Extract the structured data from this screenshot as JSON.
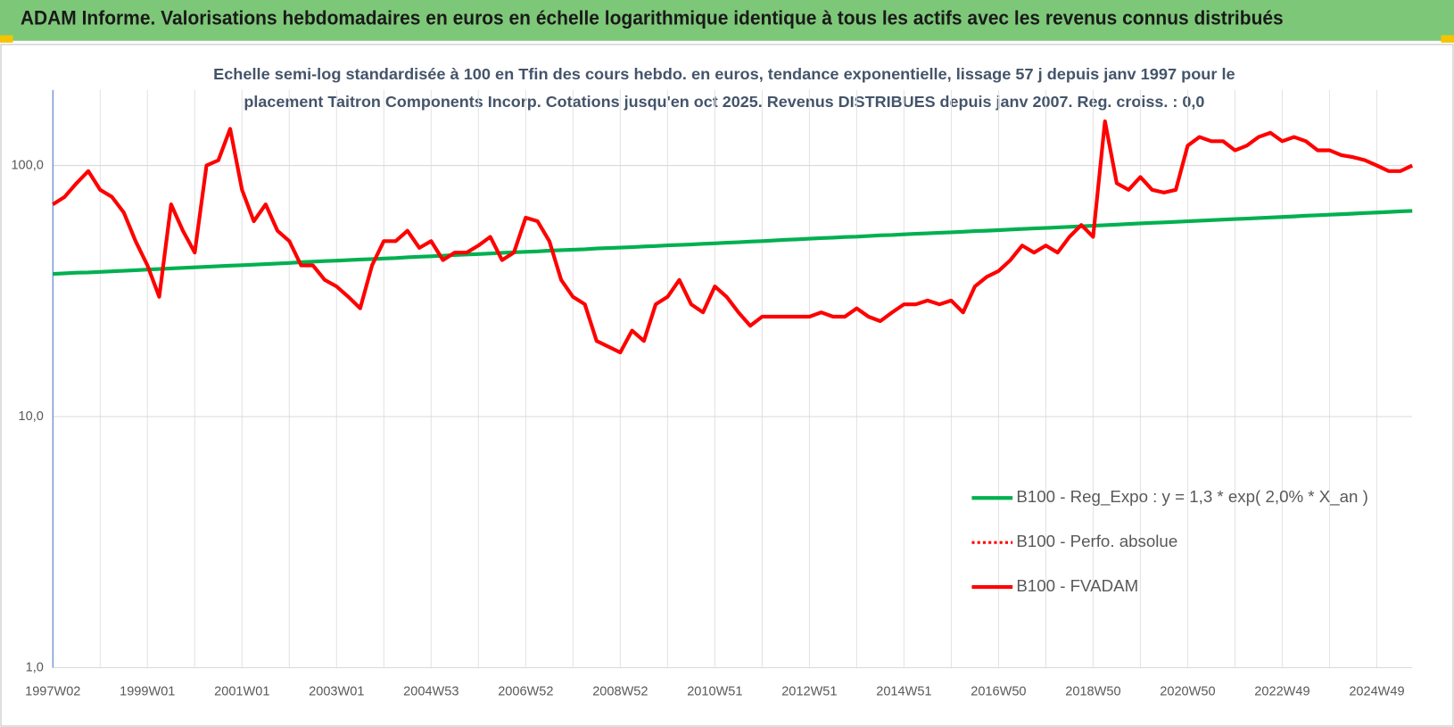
{
  "chart_data": {
    "type": "line",
    "title": "ADAM Informe. Valorisations hebdomadaires en euros en échelle logarithmique identique à tous les actifs avec les revenus connus distribués",
    "subtitle": [
      "Echelle semi-log standardisée à 100 en Tfin des cours hebdo. en euros, tendance exponentielle, lissage 57 j depuis janv 1997 pour le",
      "placement Taitron Components Incorp. Cotations jusqu'en oct 2025. Revenus DISTRIBUES depuis janv 2007. Reg. croiss. : 0,0"
    ],
    "log_scale": true,
    "ylim": [
      1,
      200
    ],
    "yticks": [
      {
        "value": 1,
        "label": "1,0"
      },
      {
        "value": 10,
        "label": "10,0"
      },
      {
        "value": 100,
        "label": "100,0"
      }
    ],
    "grid": true,
    "legend": "lower right",
    "categories": [
      "1997W02",
      null,
      null,
      null,
      null,
      null,
      null,
      null,
      "1999W01",
      null,
      null,
      null,
      null,
      null,
      null,
      null,
      "2001W01",
      null,
      null,
      null,
      null,
      null,
      null,
      null,
      "2003W01",
      null,
      null,
      null,
      null,
      null,
      null,
      null,
      "2004W53",
      null,
      null,
      null,
      null,
      null,
      null,
      null,
      "2006W52",
      null,
      null,
      null,
      null,
      null,
      null,
      null,
      "2008W52",
      null,
      null,
      null,
      null,
      null,
      null,
      null,
      "2010W51",
      null,
      null,
      null,
      null,
      null,
      null,
      null,
      "2012W51",
      null,
      null,
      null,
      null,
      null,
      null,
      null,
      "2014W51",
      null,
      null,
      null,
      null,
      null,
      null,
      null,
      "2016W50",
      null,
      null,
      null,
      null,
      null,
      null,
      null,
      "2018W50",
      null,
      null,
      null,
      null,
      null,
      null,
      null,
      "2020W50",
      null,
      null,
      null,
      null,
      null,
      null,
      null,
      "2022W49",
      null,
      null,
      null,
      null,
      null,
      null,
      null,
      "2024W49",
      null,
      null,
      null
    ],
    "series": [
      {
        "name": "B100 - Reg_Expo : y = 1,3 * exp( 2,0% *  X_an )",
        "color": "#00b050",
        "style": "solid",
        "values": [
          37.0,
          37.2,
          37.4,
          37.5,
          37.7,
          37.9,
          38.1,
          38.3,
          38.5,
          38.7,
          38.9,
          39.1,
          39.3,
          39.5,
          39.7,
          39.9,
          40.1,
          40.3,
          40.5,
          40.7,
          40.9,
          41.2,
          41.4,
          41.6,
          41.8,
          42.0,
          42.2,
          42.4,
          42.6,
          42.8,
          43.1,
          43.3,
          43.5,
          43.7,
          44.0,
          44.2,
          44.4,
          44.6,
          44.9,
          45.1,
          45.3,
          45.5,
          45.8,
          46.0,
          46.2,
          46.4,
          46.7,
          46.9,
          47.1,
          47.3,
          47.6,
          47.8,
          48.1,
          48.3,
          48.5,
          48.8,
          49.0,
          49.3,
          49.5,
          49.8,
          50.0,
          50.3,
          50.6,
          50.8,
          51.1,
          51.4,
          51.6,
          51.9,
          52.1,
          52.4,
          52.7,
          52.9,
          53.2,
          53.5,
          53.7,
          54.0,
          54.2,
          54.5,
          54.8,
          55.0,
          55.3,
          55.6,
          55.9,
          56.2,
          56.4,
          56.7,
          57.0,
          57.3,
          57.6,
          57.9,
          58.2,
          58.5,
          58.8,
          59.1,
          59.4,
          59.7,
          60.0,
          60.3,
          60.6,
          60.9,
          61.2,
          61.5,
          61.8,
          62.1,
          62.4,
          62.7,
          63.1,
          63.4,
          63.7,
          64.0,
          64.3,
          64.7,
          65.0,
          65.3,
          65.7,
          66.0
        ]
      },
      {
        "name": "B100 - Perfo. absolue",
        "color": "#ff0000",
        "style": "dotted",
        "values": [
          70,
          75,
          85,
          95,
          80,
          75,
          65,
          50,
          40,
          30,
          70,
          55,
          45,
          100,
          105,
          140,
          80,
          60,
          70,
          55,
          50,
          40,
          40,
          35,
          33,
          30,
          27,
          40,
          50,
          50,
          55,
          47,
          50,
          42,
          45,
          45,
          48,
          52,
          42,
          45,
          62,
          60,
          50,
          35,
          30,
          28,
          20,
          19,
          18,
          22,
          20,
          28,
          30,
          35,
          28,
          26,
          33,
          30,
          26,
          23,
          25,
          25,
          25,
          25,
          25,
          26,
          25,
          25,
          27,
          25,
          24,
          26,
          28,
          28,
          29,
          28,
          29,
          26,
          33,
          36,
          38,
          42,
          48,
          45,
          48,
          45,
          52,
          58,
          52,
          150,
          85,
          80,
          90,
          80,
          78,
          80,
          120,
          130,
          125,
          125,
          115,
          120,
          130,
          135,
          125,
          130,
          125,
          115,
          115,
          110,
          108,
          105,
          100,
          95,
          95,
          100
        ]
      },
      {
        "name": "B100 - FVADAM",
        "color": "#ff0000",
        "style": "solid",
        "values": [
          70,
          75,
          85,
          95,
          80,
          75,
          65,
          50,
          40,
          30,
          70,
          55,
          45,
          100,
          105,
          140,
          80,
          60,
          70,
          55,
          50,
          40,
          40,
          35,
          33,
          30,
          27,
          40,
          50,
          50,
          55,
          47,
          50,
          42,
          45,
          45,
          48,
          52,
          42,
          45,
          62,
          60,
          50,
          35,
          30,
          28,
          20,
          19,
          18,
          22,
          20,
          28,
          30,
          35,
          28,
          26,
          33,
          30,
          26,
          23,
          25,
          25,
          25,
          25,
          25,
          26,
          25,
          25,
          27,
          25,
          24,
          26,
          28,
          28,
          29,
          28,
          29,
          26,
          33,
          36,
          38,
          42,
          48,
          45,
          48,
          45,
          52,
          58,
          52,
          150,
          85,
          80,
          90,
          80,
          78,
          80,
          120,
          130,
          125,
          125,
          115,
          120,
          130,
          135,
          125,
          130,
          125,
          115,
          115,
          110,
          108,
          105,
          100,
          95,
          95,
          100
        ]
      }
    ]
  }
}
